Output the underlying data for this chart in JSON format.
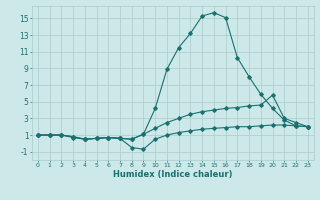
{
  "xlabel": "Humidex (Indice chaleur)",
  "bg_color": "#cce8e8",
  "line_color": "#1a7070",
  "grid_color": "#aacccc",
  "xlim": [
    -0.5,
    23.5
  ],
  "ylim": [
    -2,
    16.5
  ],
  "xticks": [
    0,
    1,
    2,
    3,
    4,
    5,
    6,
    7,
    8,
    9,
    10,
    11,
    12,
    13,
    14,
    15,
    16,
    17,
    18,
    19,
    20,
    21,
    22,
    23
  ],
  "yticks": [
    -1,
    1,
    3,
    5,
    7,
    9,
    11,
    13,
    15
  ],
  "line1_x": [
    0,
    1,
    2,
    3,
    4,
    5,
    6,
    7,
    8,
    9,
    10,
    11,
    12,
    13,
    14,
    15,
    16,
    17,
    18,
    19,
    20,
    21,
    22,
    23
  ],
  "line1_y": [
    1,
    1,
    1,
    0.7,
    0.5,
    0.6,
    0.7,
    0.6,
    0.5,
    1.1,
    4.2,
    8.9,
    11.5,
    13.2,
    15.3,
    15.7,
    15.1,
    10.3,
    8.0,
    5.9,
    4.2,
    2.8,
    2.1,
    2.0
  ],
  "line2_x": [
    0,
    1,
    2,
    3,
    4,
    5,
    6,
    7,
    8,
    9,
    10,
    11,
    12,
    13,
    14,
    15,
    16,
    17,
    18,
    19,
    20,
    21,
    22,
    23
  ],
  "line2_y": [
    1,
    1,
    1,
    0.8,
    0.5,
    0.6,
    0.7,
    0.6,
    -0.5,
    -0.7,
    0.5,
    1.0,
    1.3,
    1.5,
    1.7,
    1.8,
    1.9,
    2.0,
    2.0,
    2.1,
    2.2,
    2.2,
    2.1,
    2.0
  ],
  "line3_x": [
    0,
    1,
    2,
    3,
    4,
    5,
    6,
    7,
    8,
    9,
    10,
    11,
    12,
    13,
    14,
    15,
    16,
    17,
    18,
    19,
    20,
    21,
    22,
    23
  ],
  "line3_y": [
    1,
    1,
    1,
    0.8,
    0.5,
    0.6,
    0.7,
    0.6,
    0.5,
    1.1,
    1.8,
    2.5,
    3.0,
    3.5,
    3.8,
    4.0,
    4.2,
    4.3,
    4.5,
    4.6,
    5.8,
    3.0,
    2.5,
    2.0
  ]
}
